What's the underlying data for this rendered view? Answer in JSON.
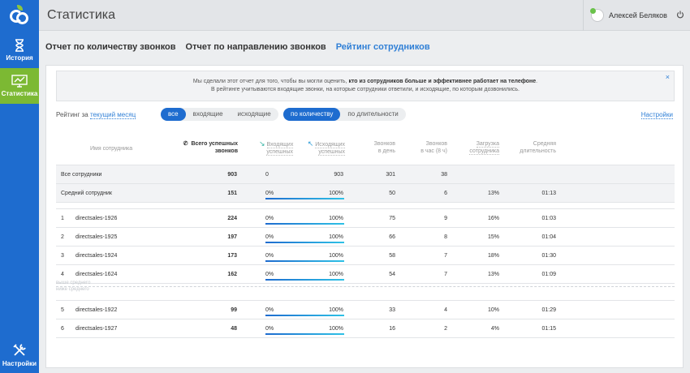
{
  "sidebar": {
    "items": [
      {
        "label": "История",
        "icon": "hourglass-icon"
      },
      {
        "label": "Статистика",
        "icon": "chart-monitor-icon"
      },
      {
        "label": "Настройки",
        "icon": "tools-icon"
      }
    ]
  },
  "header": {
    "title": "Статистика",
    "user_name": "Алексей Беляков"
  },
  "tabs": [
    {
      "label": "Отчет по количеству звонков",
      "active": false
    },
    {
      "label": "Отчет по направлению звонков",
      "active": false
    },
    {
      "label": "Рейтинг сотрудников",
      "active": true
    }
  ],
  "notice": {
    "line1_prefix": "Мы сделали этот отчет для того, чтобы вы могли оценить,",
    "line1_bold": "кто из сотрудников больше и эффективнее работает на телефоне",
    "line1_suffix": ".",
    "line2": "В рейтинге учитываются входящие звонки, на которые сотрудники ответили, и исходящие, по которым дозвонились.",
    "close": "×"
  },
  "filters": {
    "rating_label": "Рейтинг за",
    "period": "текущий месяц",
    "direction": {
      "options": [
        "все",
        "входящие",
        "исходящие"
      ],
      "selected": "все"
    },
    "sort": {
      "options": [
        "по количеству",
        "по длительности"
      ],
      "selected": "по количеству"
    },
    "settings": "Настройки"
  },
  "columns": {
    "name": "Имя сотрудника",
    "total_l1": "Всего успешных",
    "total_l2": "звонков",
    "in_l1": "Входящих",
    "in_l2": "успешных",
    "out_l1": "Исходящих",
    "out_l2": "успешных",
    "day_l1": "Звонков",
    "day_l2": "в день",
    "hour_l1": "Звонков",
    "hour_l2": "в час (8 ч)",
    "load_l1": "Загрузка",
    "load_l2": "сотрудника",
    "avg_l1": "Средняя",
    "avg_l2": "длительность"
  },
  "summary": [
    {
      "name": "Все сотрудники",
      "total": "903",
      "in": "0",
      "out": "903",
      "per_day": "301",
      "per_hour": "38",
      "load": "",
      "avg": "",
      "in_ratio": null
    },
    {
      "name": "Средний сотрудник",
      "total": "151",
      "in": "0%",
      "out": "100%",
      "per_day": "50",
      "per_hour": "6",
      "load": "13%",
      "avg": "01:13",
      "in_ratio": 0
    }
  ],
  "above": [
    {
      "rank": "1",
      "name": "directsales-1926",
      "total": "224",
      "in": "0%",
      "out": "100%",
      "per_day": "75",
      "per_hour": "9",
      "load": "16%",
      "avg": "01:03",
      "in_ratio": 0
    },
    {
      "rank": "2",
      "name": "directsales-1925",
      "total": "197",
      "in": "0%",
      "out": "100%",
      "per_day": "66",
      "per_hour": "8",
      "load": "15%",
      "avg": "01:04",
      "in_ratio": 0
    },
    {
      "rank": "3",
      "name": "directsales-1924",
      "total": "173",
      "in": "0%",
      "out": "100%",
      "per_day": "58",
      "per_hour": "7",
      "load": "18%",
      "avg": "01:30",
      "in_ratio": 0
    },
    {
      "rank": "4",
      "name": "directsales-1624",
      "total": "162",
      "in": "0%",
      "out": "100%",
      "per_day": "54",
      "per_hour": "7",
      "load": "13%",
      "avg": "01:09",
      "in_ratio": 0
    }
  ],
  "divider": {
    "above": "выше среднего",
    "below": "ниже среднего"
  },
  "below": [
    {
      "rank": "5",
      "name": "directsales-1922",
      "total": "99",
      "in": "0%",
      "out": "100%",
      "per_day": "33",
      "per_hour": "4",
      "load": "10%",
      "avg": "01:29",
      "in_ratio": 0
    },
    {
      "rank": "6",
      "name": "directsales-1927",
      "total": "48",
      "in": "0%",
      "out": "100%",
      "per_day": "16",
      "per_hour": "2",
      "load": "4%",
      "avg": "01:15",
      "in_ratio": 0
    }
  ],
  "colors": {
    "sidebar": "#1e6ccf",
    "active_nav": "#7cb933",
    "accent": "#2f7fd6"
  }
}
